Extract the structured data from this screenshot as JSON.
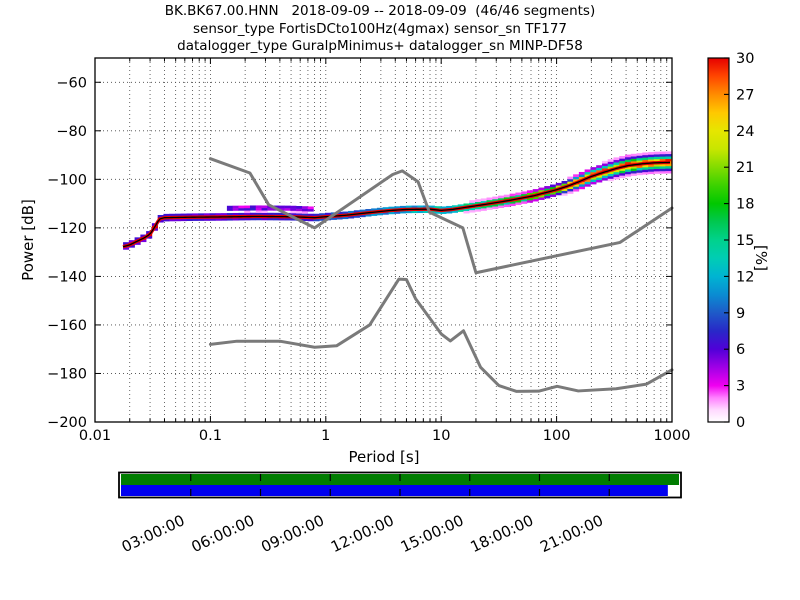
{
  "header": {
    "line1": "BK.BK67.00.HNN   2018-09-09 -- 2018-09-09  (46/46 segments)",
    "line2": "sensor_type FortisDCto100Hz(4gmax) sensor_sn TF177",
    "line3": "datalogger_type GuralpMinimus+ datalogger_sn MINP-DF58"
  },
  "chart_data": {
    "type": "heatmap",
    "title": "BK.BK67.00.HNN 2018-09-09 -- 2018-09-09 (46/46 segments)",
    "xlabel": "Period [s]",
    "ylabel": "Power [dB]",
    "colorbar_label": "[%]",
    "xlim": [
      0.01,
      1000
    ],
    "ylim": [
      -200,
      -50
    ],
    "x_scale": "log",
    "grid": true,
    "x_tick_labels": [
      "0.01",
      "0.1",
      "1",
      "10",
      "100",
      "1000"
    ],
    "x_tick_values": [
      0.01,
      0.1,
      1,
      10,
      100,
      1000
    ],
    "y_tick_values": [
      -60,
      -80,
      -100,
      -120,
      -140,
      -160,
      -180,
      -200
    ],
    "colorbar": {
      "min": 0,
      "max": 30,
      "tick_values": [
        0,
        3,
        6,
        9,
        12,
        15,
        18,
        21,
        24,
        27,
        30
      ],
      "stops": [
        [
          0,
          "#ffffff"
        ],
        [
          1,
          "#ffd9ff"
        ],
        [
          2,
          "#ff80ff"
        ],
        [
          3,
          "#f000f0"
        ],
        [
          4.5,
          "#a000e6"
        ],
        [
          6,
          "#5000d8"
        ],
        [
          7.5,
          "#2828c8"
        ],
        [
          9,
          "#1e5ac8"
        ],
        [
          10.5,
          "#0a8cd2"
        ],
        [
          12,
          "#00b4d2"
        ],
        [
          13.5,
          "#00cdb4"
        ],
        [
          15,
          "#00d28c"
        ],
        [
          16.5,
          "#00c850"
        ],
        [
          18,
          "#00c800"
        ],
        [
          19.5,
          "#3cd200"
        ],
        [
          21,
          "#82dc00"
        ],
        [
          22.5,
          "#c8e600"
        ],
        [
          24,
          "#e6e600"
        ],
        [
          25.5,
          "#ffc800"
        ],
        [
          27,
          "#ff8c00"
        ],
        [
          28.5,
          "#ff4600"
        ],
        [
          30,
          "#e60000"
        ]
      ]
    },
    "noise_model_color": "#7a7a7a",
    "mode_line_color": "#000000",
    "mode_core_color": "#e60000",
    "nhnm": [
      [
        0.1,
        -91.5
      ],
      [
        0.22,
        -97.4
      ],
      [
        0.32,
        -110.5
      ],
      [
        0.8,
        -120.0
      ],
      [
        3.8,
        -98.0
      ],
      [
        4.6,
        -96.5
      ],
      [
        6.3,
        -101.0
      ],
      [
        7.9,
        -113.5
      ],
      [
        15.4,
        -120.0
      ],
      [
        20,
        -138.5
      ],
      [
        354.8,
        -126.0
      ],
      [
        1000,
        -111.8
      ]
    ],
    "nlnm": [
      [
        0.1,
        -168.0
      ],
      [
        0.17,
        -166.7
      ],
      [
        0.4,
        -166.7
      ],
      [
        0.8,
        -169.2
      ],
      [
        1.24,
        -168.6
      ],
      [
        2.4,
        -160.0
      ],
      [
        4.3,
        -141.1
      ],
      [
        5.0,
        -141.3
      ],
      [
        6.0,
        -149.2
      ],
      [
        10,
        -163.7
      ],
      [
        12,
        -166.6
      ],
      [
        15.6,
        -162.4
      ],
      [
        21.9,
        -177.4
      ],
      [
        31.6,
        -185.0
      ],
      [
        45,
        -187.4
      ],
      [
        70,
        -187.3
      ],
      [
        101,
        -185.3
      ],
      [
        154,
        -187.2
      ],
      [
        328,
        -186.3
      ],
      [
        600,
        -184.4
      ],
      [
        1000,
        -178.5
      ]
    ],
    "mode_curve": [
      [
        0.0175,
        -127.8
      ],
      [
        0.02,
        -127.0
      ],
      [
        0.023,
        -125.6
      ],
      [
        0.027,
        -124.0
      ],
      [
        0.03,
        -122.6
      ],
      [
        0.033,
        -119.6
      ],
      [
        0.036,
        -116.4
      ],
      [
        0.04,
        -115.8
      ],
      [
        0.07,
        -115.6
      ],
      [
        0.12,
        -115.5
      ],
      [
        0.25,
        -115.3
      ],
      [
        0.5,
        -115.4
      ],
      [
        0.8,
        -115.8
      ],
      [
        1.0,
        -115.4
      ],
      [
        1.5,
        -114.8
      ],
      [
        2.2,
        -113.9
      ],
      [
        3.5,
        -112.9
      ],
      [
        5.0,
        -112.4
      ],
      [
        8.0,
        -112.3
      ],
      [
        10,
        -112.8
      ],
      [
        12.5,
        -112.4
      ],
      [
        16,
        -111.6
      ],
      [
        25,
        -110.2
      ],
      [
        40,
        -108.6
      ],
      [
        63,
        -106.8
      ],
      [
        100,
        -104.3
      ],
      [
        130,
        -102.5
      ],
      [
        160,
        -100.8
      ],
      [
        200,
        -98.8
      ],
      [
        260,
        -97.0
      ],
      [
        330,
        -95.5
      ],
      [
        420,
        -94.3
      ],
      [
        550,
        -93.6
      ],
      [
        700,
        -93.2
      ],
      [
        1000,
        -93.0
      ]
    ],
    "spread_sigma_db": [
      [
        -1.76,
        0.55
      ],
      [
        -1.0,
        0.55
      ],
      [
        0,
        0.6
      ],
      [
        1.0,
        0.75
      ],
      [
        1.7,
        0.9
      ],
      [
        2.0,
        1.1
      ],
      [
        2.3,
        1.5
      ],
      [
        2.6,
        1.7
      ],
      [
        3.0,
        1.7
      ]
    ],
    "secondary_blob": {
      "lp1": -0.9,
      "lp2": -0.12,
      "offset_db": 3.4,
      "sigma": 0.8,
      "amp_pct": 6
    },
    "max_percentage_shown": 30,
    "timeline": {
      "hours": 24,
      "tick_interval_hours": 3,
      "time_labels": [
        "03:00:00",
        "06:00:00",
        "09:00:00",
        "12:00:00",
        "15:00:00",
        "18:00:00",
        "21:00:00"
      ],
      "green_color": "#007d00",
      "blue_color": "#0000ef",
      "coverage_start_frac": 0.0,
      "coverage_end_frac": 0.98
    }
  }
}
